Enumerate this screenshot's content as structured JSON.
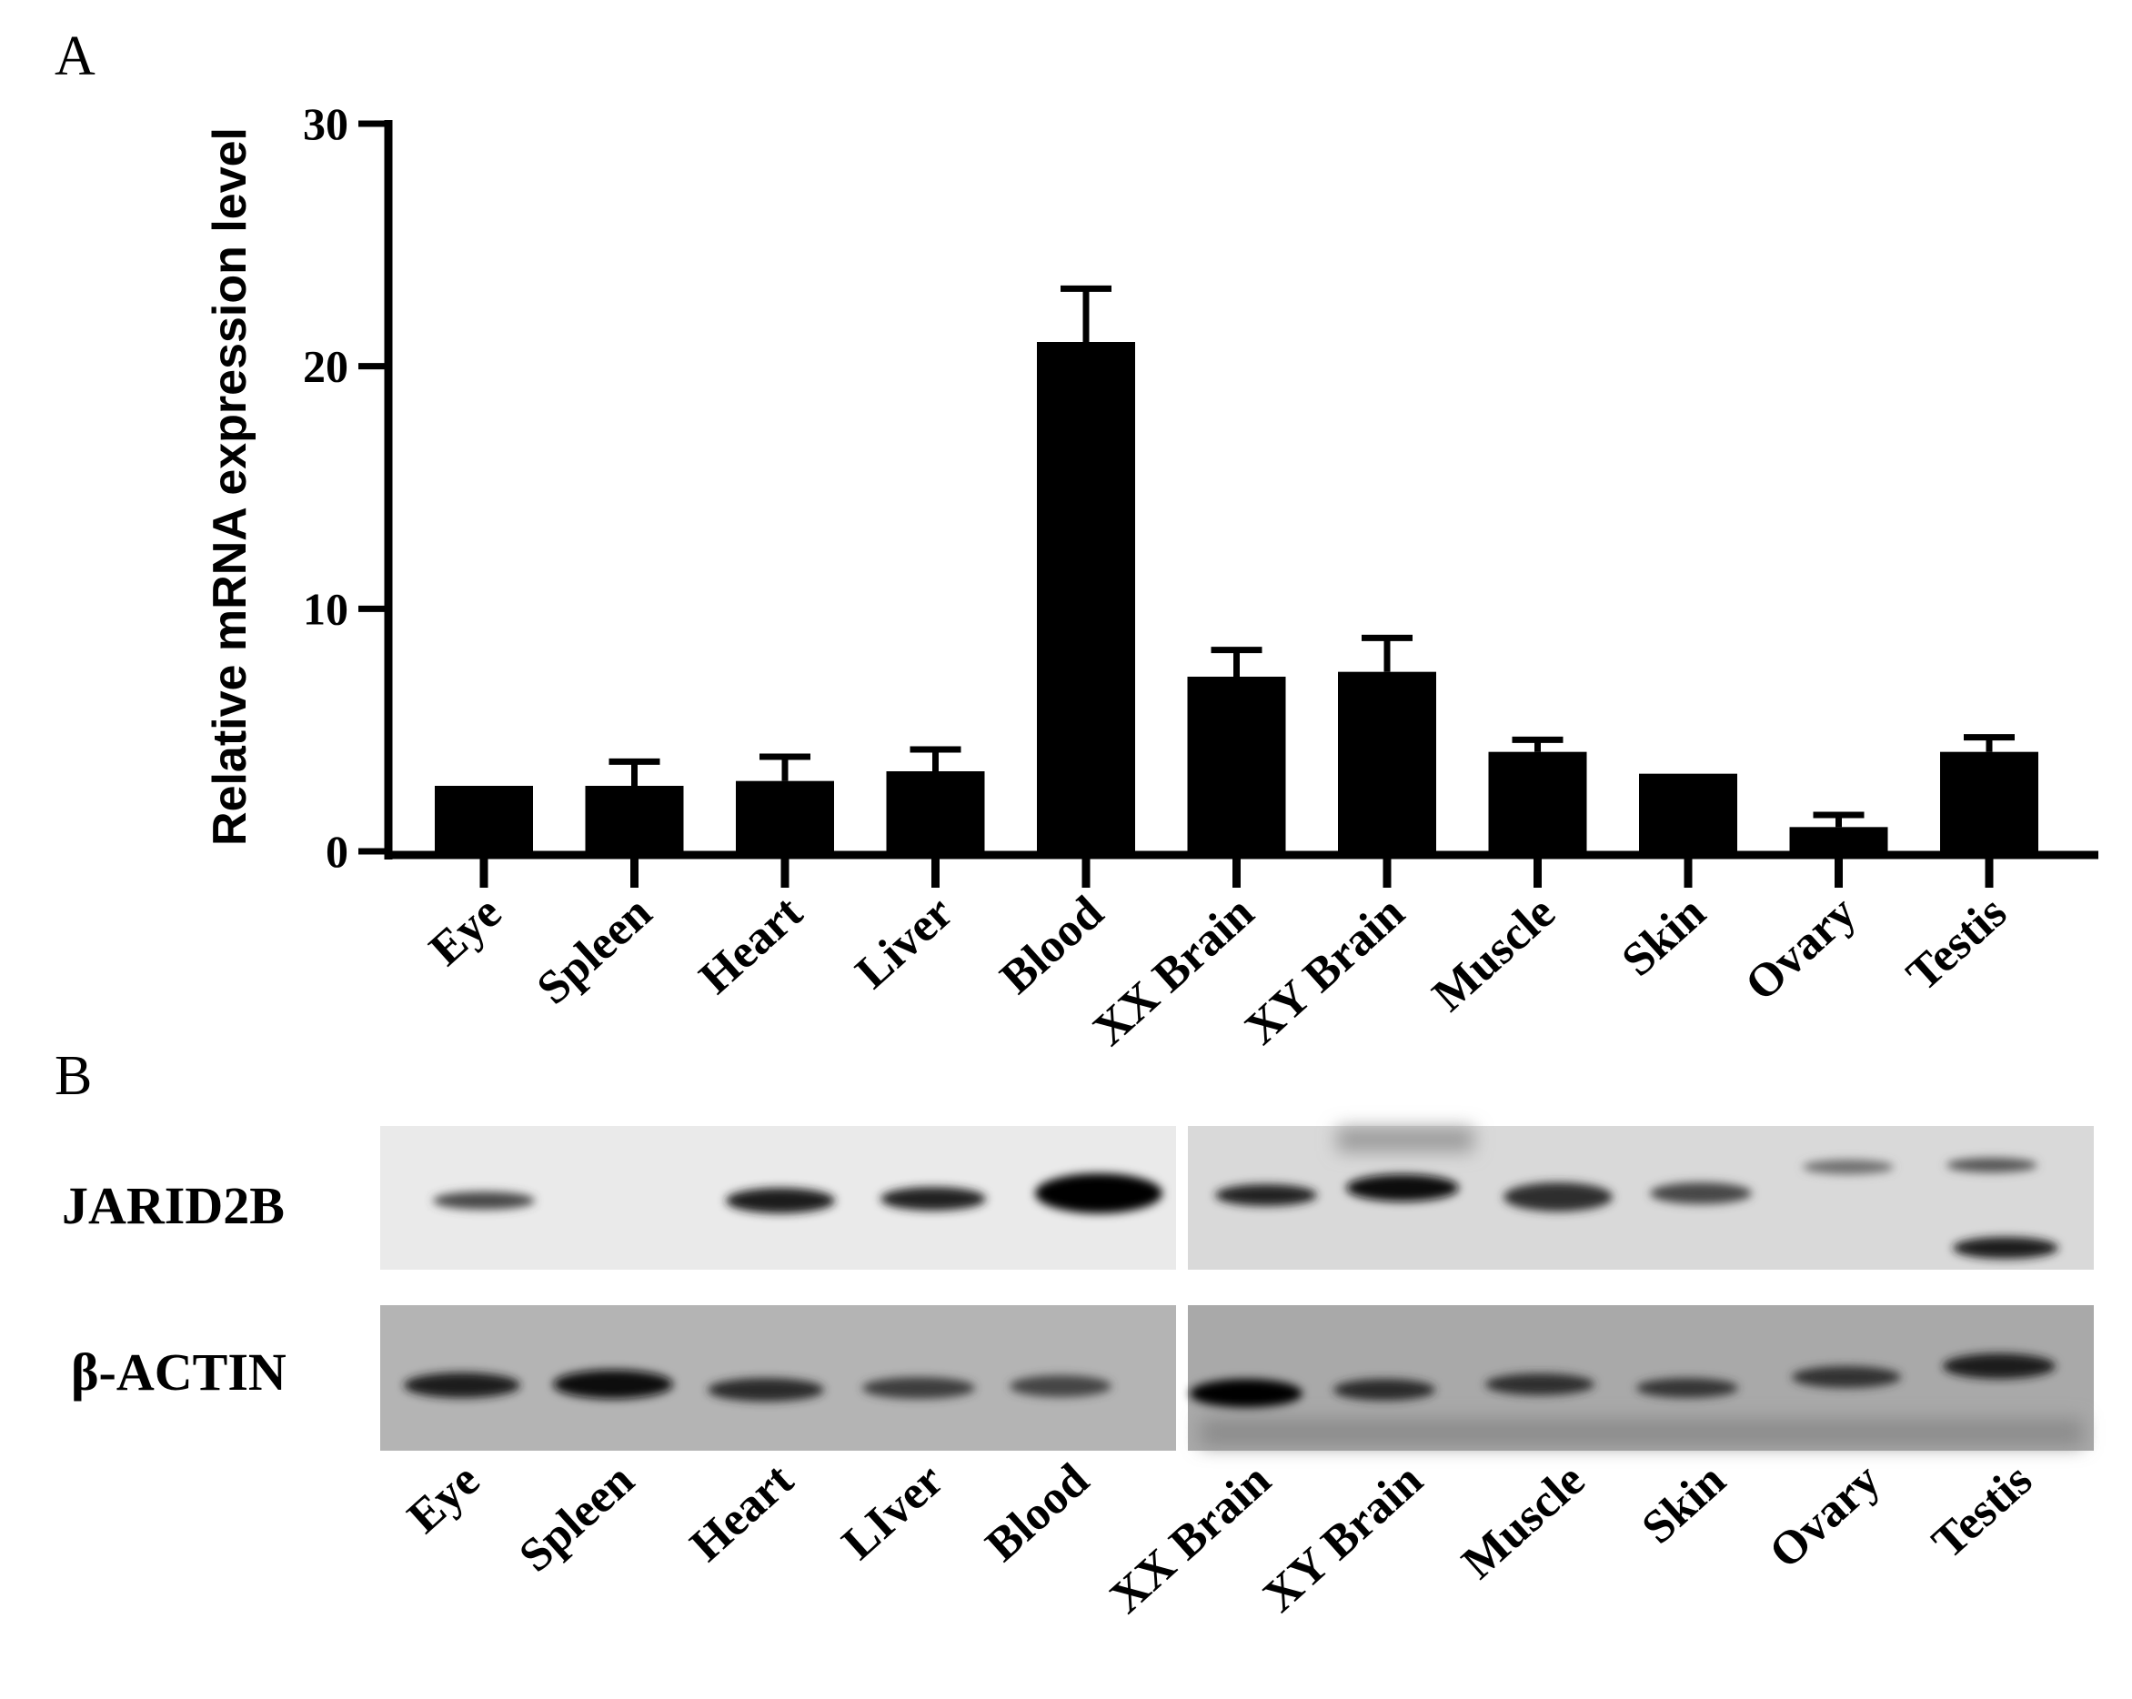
{
  "panels": {
    "a_label": "A",
    "b_label": "B"
  },
  "chart_data": {
    "type": "bar",
    "title": "",
    "xlabel": "",
    "ylabel": "Relative mRNA expression level",
    "ylim": [
      0,
      30
    ],
    "yticks": [
      "0",
      "10",
      "20",
      "30"
    ],
    "categories": [
      "Eye",
      "Spleen",
      "Heart",
      "Liver",
      "Blood",
      "XX Brain",
      "XY Brain",
      "Muscle",
      "Skin",
      "Ovary",
      "Testis"
    ],
    "values": [
      2.7,
      2.7,
      2.9,
      3.3,
      21.0,
      7.2,
      7.4,
      4.1,
      3.2,
      1.0,
      4.1
    ],
    "errors": [
      0.0,
      1.0,
      1.0,
      0.9,
      2.2,
      1.1,
      1.4,
      0.5,
      0.0,
      0.5,
      0.6
    ],
    "bar_color": "#000000",
    "grid": false
  },
  "blot": {
    "rows": [
      "JARID2B",
      "β-ACTIN"
    ],
    "lanes": [
      "Eye",
      "Spleen",
      "Heart",
      "LIver",
      "Blood",
      "XX Brain",
      "XY Brain",
      "Muscle",
      "Skin",
      "Ovary",
      "Testis"
    ]
  }
}
